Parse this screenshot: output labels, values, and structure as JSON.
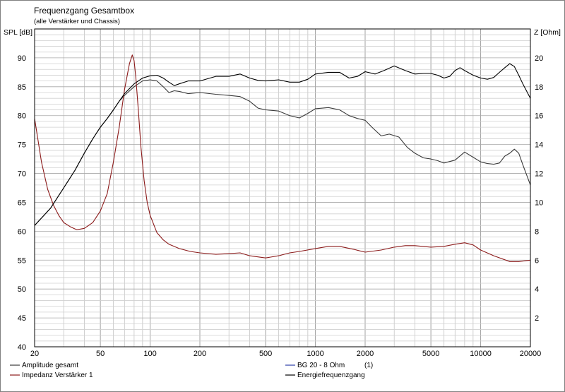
{
  "chart_data": {
    "type": "line",
    "title": "Frequenzgang Gesamtbox",
    "subtitle": "(alle Verstärker und Chassis)",
    "ylabel_left": "SPL [dB]",
    "ylabel_right": "Z [Ohm]",
    "x_scale": "log",
    "xlim": [
      20,
      20000
    ],
    "ylim_left": [
      40,
      95
    ],
    "ylim_right": [
      0,
      22
    ],
    "x_ticks": [
      20,
      50,
      100,
      200,
      500,
      1000,
      2000,
      5000,
      10000,
      20000
    ],
    "x_tick_labels": [
      "20",
      "50",
      "100",
      "200",
      "500",
      "1000",
      "2000",
      "5000",
      "10000",
      "20000"
    ],
    "y_ticks_left": [
      40,
      45,
      50,
      55,
      60,
      65,
      70,
      75,
      80,
      85,
      90
    ],
    "y_ticks_right": [
      2,
      4,
      6,
      8,
      10,
      12,
      14,
      16,
      18,
      20
    ],
    "grid": true,
    "legend_position": "bottom",
    "series": [
      {
        "name": "Amplitude gesamt",
        "color": "#3a3a3a",
        "axis": "left",
        "x": [
          20,
          25,
          30,
          35,
          40,
          45,
          50,
          55,
          60,
          65,
          70,
          80,
          90,
          100,
          110,
          120,
          130,
          140,
          150,
          170,
          200,
          250,
          300,
          350,
          400,
          450,
          500,
          600,
          700,
          800,
          900,
          1000,
          1200,
          1400,
          1600,
          1800,
          2000,
          2200,
          2500,
          2800,
          3200,
          3600,
          4000,
          4500,
          5000,
          5500,
          6000,
          7000,
          8000,
          9000,
          10000,
          11000,
          12000,
          13000,
          14000,
          15000,
          16000,
          17000,
          18000,
          20000
        ],
        "y": [
          61,
          64,
          67.5,
          70.5,
          73.5,
          76,
          78,
          79.5,
          81,
          82.5,
          83.5,
          85,
          86,
          86.2,
          86,
          85,
          84,
          84.3,
          84.2,
          83.8,
          84,
          83.7,
          83.5,
          83.3,
          82.5,
          81.3,
          81,
          80.8,
          80,
          79.6,
          80.4,
          81.2,
          81.4,
          81,
          80,
          79.5,
          79.2,
          78,
          76.5,
          76.8,
          76.3,
          74.5,
          73.5,
          72.7,
          72.5,
          72.2,
          71.8,
          72.3,
          73.7,
          72.8,
          72,
          71.7,
          71.6,
          71.8,
          73,
          73.5,
          74.2,
          73.5,
          71.5,
          68
        ]
      },
      {
        "name": "Impedanz Verstärker 1",
        "color": "#8b1a1a",
        "axis": "right",
        "x": [
          20,
          22,
          24,
          26,
          28,
          30,
          33,
          36,
          40,
          45,
          50,
          55,
          60,
          65,
          70,
          75,
          78,
          80,
          82,
          85,
          88,
          92,
          96,
          100,
          110,
          120,
          130,
          150,
          175,
          200,
          250,
          300,
          350,
          400,
          500,
          600,
          700,
          800,
          1000,
          1200,
          1400,
          1700,
          2000,
          2500,
          3000,
          3500,
          4000,
          5000,
          6000,
          7000,
          8000,
          9000,
          10000,
          12000,
          15000,
          17000,
          20000
        ],
        "y": [
          15.8,
          12.8,
          10.9,
          9.8,
          9.1,
          8.6,
          8.3,
          8.1,
          8.2,
          8.6,
          9.4,
          10.6,
          12.8,
          15.2,
          17.8,
          19.6,
          20.2,
          19.8,
          18.6,
          16.3,
          13.8,
          11.5,
          10,
          9.1,
          7.9,
          7.4,
          7.1,
          6.8,
          6.6,
          6.5,
          6.4,
          6.45,
          6.5,
          6.3,
          6.15,
          6.3,
          6.5,
          6.6,
          6.8,
          6.95,
          6.95,
          6.75,
          6.55,
          6.7,
          6.9,
          7.0,
          7.0,
          6.9,
          6.95,
          7.1,
          7.2,
          7.05,
          6.7,
          6.3,
          5.9,
          5.9,
          6.0
        ]
      },
      {
        "name": "BG 20 - 8 Ohm",
        "legend_suffix": "(1)",
        "color": "#2f3fa8",
        "axis": "left",
        "x": [],
        "y": []
      },
      {
        "name": "Energiefrequenzgang",
        "color": "#000000",
        "axis": "left",
        "x": [
          20,
          25,
          30,
          35,
          40,
          45,
          50,
          55,
          60,
          65,
          70,
          80,
          90,
          100,
          110,
          120,
          130,
          140,
          150,
          170,
          200,
          250,
          300,
          350,
          400,
          450,
          500,
          600,
          700,
          800,
          900,
          1000,
          1200,
          1400,
          1600,
          1800,
          2000,
          2300,
          2600,
          3000,
          3500,
          4000,
          4500,
          5000,
          5500,
          6000,
          6500,
          7000,
          7500,
          8000,
          9000,
          10000,
          11000,
          12000,
          13000,
          14000,
          15000,
          16000,
          17000,
          18000,
          20000
        ],
        "y": [
          61,
          64,
          67.5,
          70.5,
          73.5,
          76,
          78,
          79.5,
          81,
          82.5,
          83.8,
          85.5,
          86.5,
          86.9,
          87,
          86.5,
          85.8,
          85.2,
          85.5,
          86,
          86,
          86.8,
          86.8,
          87.2,
          86.5,
          86.1,
          86,
          86.2,
          85.8,
          85.8,
          86.3,
          87.2,
          87.5,
          87.5,
          86.5,
          86.8,
          87.6,
          87.2,
          87.8,
          88.6,
          87.8,
          87.2,
          87.3,
          87.3,
          87,
          86.5,
          86.8,
          87.8,
          88.3,
          87.8,
          87.0,
          86.5,
          86.3,
          86.6,
          87.5,
          88.3,
          89.0,
          88.5,
          87,
          85.5,
          83
        ]
      }
    ]
  }
}
